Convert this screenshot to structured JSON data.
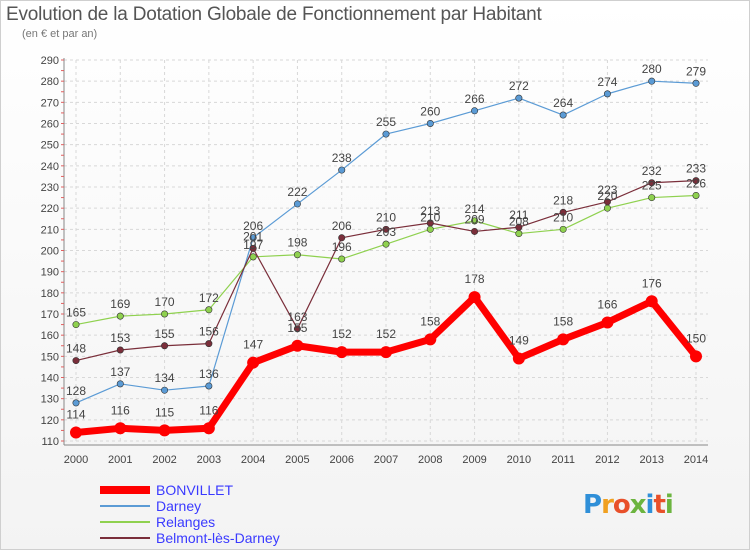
{
  "title": "Evolution de la Dotation Globale de Fonctionnement par Habitant",
  "subtitle": "(en € et par an)",
  "logo": {
    "text": "Proxiti"
  },
  "chart_data": {
    "type": "line",
    "categories": [
      "2000",
      "2001",
      "2002",
      "2003",
      "2004",
      "2005",
      "2006",
      "2007",
      "2008",
      "2009",
      "2010",
      "2011",
      "2012",
      "2013",
      "2014"
    ],
    "ylim": [
      110,
      290
    ],
    "yticks": [
      110,
      120,
      130,
      140,
      150,
      160,
      170,
      180,
      190,
      200,
      210,
      220,
      230,
      240,
      250,
      260,
      270,
      280,
      290
    ],
    "grid": true,
    "series": [
      {
        "name": "Darney",
        "color": "#5b9bd5",
        "values": [
          128,
          137,
          134,
          136,
          206,
          222,
          238,
          255,
          260,
          266,
          272,
          264,
          274,
          280,
          279
        ]
      },
      {
        "name": "Relanges",
        "color": "#8fd14f",
        "values": [
          165,
          169,
          170,
          172,
          197,
          198,
          196,
          203,
          210,
          214,
          208,
          210,
          220,
          225,
          226
        ]
      },
      {
        "name": "Belmont-lès-Darney",
        "color": "#7a2e3a",
        "values": [
          148,
          153,
          155,
          156,
          201,
          163,
          206,
          210,
          213,
          209,
          211,
          218,
          223,
          232,
          233
        ]
      },
      {
        "name": "BONVILLET",
        "color": "#ff0000",
        "values": [
          114,
          116,
          115,
          116,
          147,
          155,
          152,
          152,
          158,
          178,
          149,
          158,
          166,
          176,
          150
        ]
      }
    ],
    "legend": [
      "BONVILLET",
      "Darney",
      "Relanges",
      "Belmont-lès-Darney"
    ]
  }
}
